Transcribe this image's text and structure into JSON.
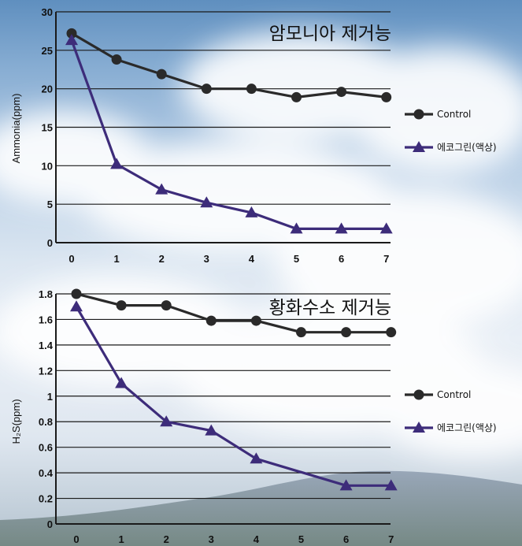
{
  "chart_data": [
    {
      "type": "line",
      "title": "암모니아 제거능",
      "xlabel": "",
      "ylabel": "Ammonia(ppm)",
      "x": [
        0,
        1,
        2,
        3,
        4,
        5,
        6,
        7
      ],
      "ylim": [
        0,
        30
      ],
      "yticks": [
        "0",
        "5",
        "10",
        "15",
        "20",
        "25",
        "30"
      ],
      "grid": true,
      "legend_position": "right",
      "series": [
        {
          "name": "Control",
          "values": [
            27.2,
            23.8,
            21.9,
            20.0,
            20.0,
            18.9,
            19.6,
            18.9
          ],
          "marker": "circle",
          "color": "#2a2a2a"
        },
        {
          "name": "에코그린(액상)",
          "values": [
            26.3,
            10.2,
            6.9,
            5.2,
            3.9,
            1.8,
            1.8,
            1.8
          ],
          "marker": "triangle",
          "color": "#3d2c7a"
        }
      ]
    },
    {
      "type": "line",
      "title": "황화수소 제거능",
      "xlabel": "",
      "ylabel": "H₂S(ppm)",
      "x": [
        0,
        1,
        2,
        3,
        4,
        5,
        6,
        7
      ],
      "ylim": [
        0,
        1.8
      ],
      "yticks": [
        "0",
        "0.2",
        "0.4",
        "0.6",
        "0.8",
        "1",
        "1.2",
        "1.4",
        "1.6",
        "1.8"
      ],
      "grid": true,
      "legend_position": "right",
      "series": [
        {
          "name": "Control",
          "values": [
            1.8,
            1.71,
            1.71,
            1.59,
            1.59,
            1.5,
            1.5,
            1.5
          ],
          "marker": "circle",
          "color": "#2a2a2a"
        },
        {
          "name": "에코그린(액상)",
          "values": [
            1.7,
            1.1,
            0.8,
            0.73,
            0.51,
            null,
            0.3,
            0.3
          ],
          "marker": "triangle",
          "color": "#3d2c7a"
        }
      ]
    }
  ]
}
